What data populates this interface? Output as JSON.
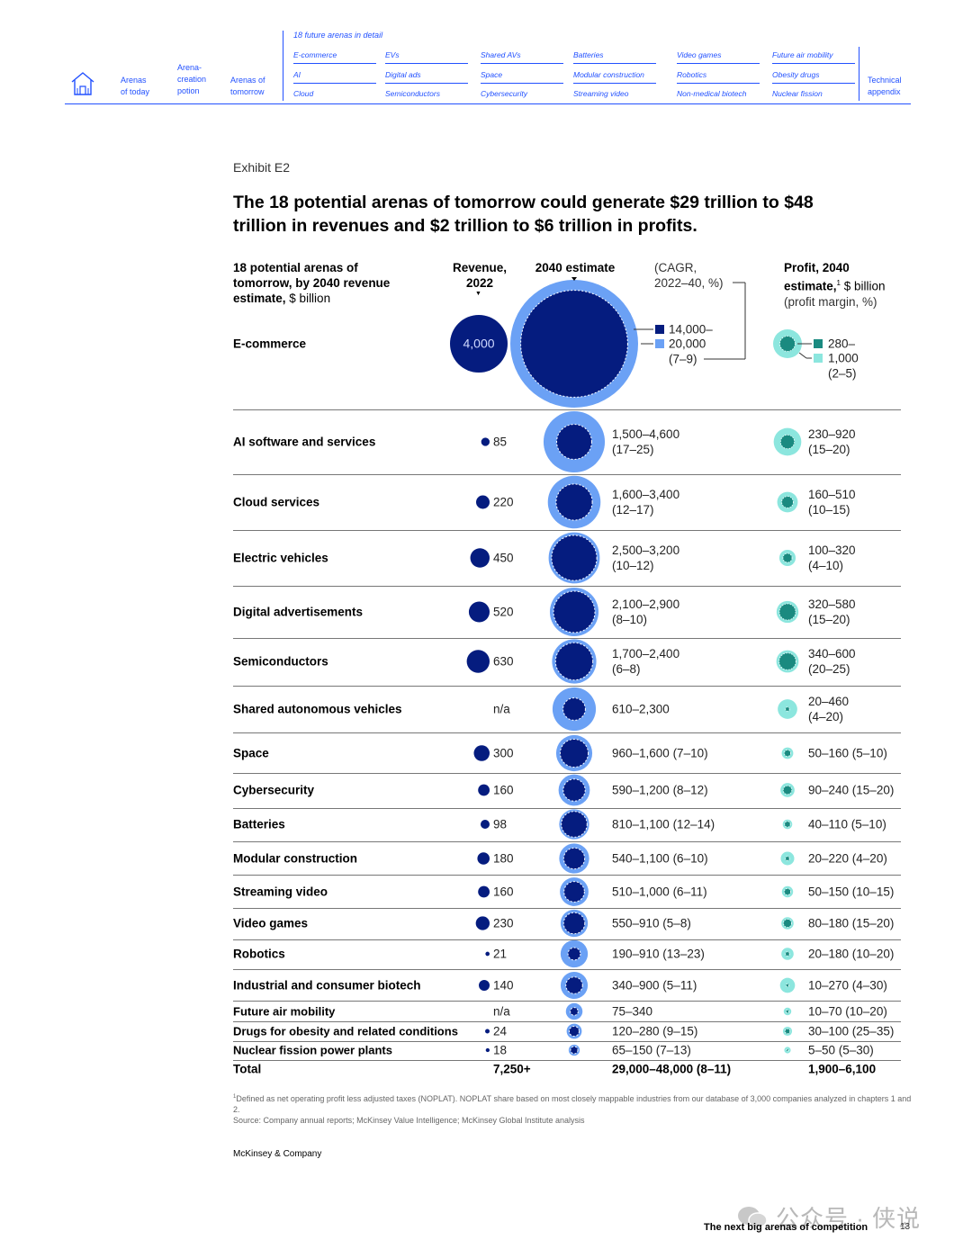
{
  "nav": {
    "sections": [
      {
        "label": "Arenas\nof today"
      },
      {
        "label": "Arena-\ncreation\npotion"
      },
      {
        "label": "Arenas of\ntomorrow"
      },
      {
        "label": "Technical\nappendix"
      }
    ],
    "detail_title": "18 future arenas in detail",
    "detail_columns": [
      [
        "E-commerce",
        "AI",
        "Cloud"
      ],
      [
        "EVs",
        "Digital ads",
        "Semiconductors"
      ],
      [
        "Shared AVs",
        "Space",
        "Cybersecurity"
      ],
      [
        "Batteries",
        "Modular construction",
        "Streaming video"
      ],
      [
        "Video games",
        "Robotics",
        "Non-medical biotech"
      ],
      [
        "Future air mobility",
        "Obesity drugs",
        "Nuclear fission"
      ]
    ]
  },
  "exhibit": {
    "label": "Exhibit E2",
    "title": "The 18 potential arenas of tomorrow could generate $29 trillion to $48 trillion in revenues and $2 trillion to $6 trillion in profits."
  },
  "headers": {
    "arenas_bold": "18 potential arenas of tomorrow, by 2040 revenue estimate,",
    "arenas_unit": "$ billion",
    "revenue_2022": "Revenue, 2022",
    "estimate_2040": "2040 estimate",
    "cagr_note": "(CAGR, 2022–40, %)",
    "profit_bold": "Profit, 2040 estimate,",
    "profit_sup": "1",
    "profit_unit": "$ billion",
    "profit_margin": "(profit margin, %)"
  },
  "legend": {
    "low_2040": "14,000–",
    "high_2040": "20,000",
    "cagr_2040": "(7–9)",
    "low_profit": "280–",
    "high_profit": "1,000",
    "margin_profit": "(2–5)"
  },
  "colors": {
    "revenue_2022": "#051c7f",
    "low_2040": "#051c7f",
    "high_2040": "#6ba1f5",
    "low_profit": "#1a8a80",
    "high_profit": "#8ce6de",
    "nav_blue": "#2251ff"
  },
  "chart_data": {
    "type": "bubble-table",
    "title": "The 18 potential arenas of tomorrow could generate $29 trillion to $48 trillion in revenues and $2 trillion to $6 trillion in profits.",
    "units": "$ billion",
    "rows": [
      {
        "name": "E-commerce",
        "rev2022": 4000,
        "rev2022_label": "4,000",
        "rev2040_low": 14000,
        "rev2040_high": 20000,
        "rev2040_label": "14,000–20,000 (7–9)",
        "profit_low": 280,
        "profit_high": 1000,
        "profit_label": "280–1,000 (2–5)"
      },
      {
        "name": "AI software and services",
        "rev2022": 85,
        "rev2022_label": "85",
        "rev2040_low": 1500,
        "rev2040_high": 4600,
        "rev2040_label": "1,500–4,600\n(17–25)",
        "profit_low": 230,
        "profit_high": 920,
        "profit_label": "230–920\n(15–20)"
      },
      {
        "name": "Cloud services",
        "rev2022": 220,
        "rev2022_label": "220",
        "rev2040_low": 1600,
        "rev2040_high": 3400,
        "rev2040_label": "1,600–3,400\n(12–17)",
        "profit_low": 160,
        "profit_high": 510,
        "profit_label": "160–510\n(10–15)"
      },
      {
        "name": "Electric vehicles",
        "rev2022": 450,
        "rev2022_label": "450",
        "rev2040_low": 2500,
        "rev2040_high": 3200,
        "rev2040_label": "2,500–3,200\n(10–12)",
        "profit_low": 100,
        "profit_high": 320,
        "profit_label": "100–320\n(4–10)"
      },
      {
        "name": "Digital advertisements",
        "rev2022": 520,
        "rev2022_label": "520",
        "rev2040_low": 2100,
        "rev2040_high": 2900,
        "rev2040_label": "2,100–2,900\n(8–10)",
        "profit_low": 320,
        "profit_high": 580,
        "profit_label": "320–580\n(15–20)"
      },
      {
        "name": "Semiconductors",
        "rev2022": 630,
        "rev2022_label": "630",
        "rev2040_low": 1700,
        "rev2040_high": 2400,
        "rev2040_label": "1,700–2,400\n(6–8)",
        "profit_low": 340,
        "profit_high": 600,
        "profit_label": "340–600\n(20–25)"
      },
      {
        "name": "Shared autonomous vehicles",
        "rev2022": null,
        "rev2022_label": "n/a",
        "rev2040_low": 610,
        "rev2040_high": 2300,
        "rev2040_label": "610–2,300",
        "profit_low": 20,
        "profit_high": 460,
        "profit_label": "20–460\n(4–20)"
      },
      {
        "name": "Space",
        "rev2022": 300,
        "rev2022_label": "300",
        "rev2040_low": 960,
        "rev2040_high": 1600,
        "rev2040_label": "960–1,600 (7–10)",
        "profit_low": 50,
        "profit_high": 160,
        "profit_label": "50–160 (5–10)"
      },
      {
        "name": "Cybersecurity",
        "rev2022": 160,
        "rev2022_label": "160",
        "rev2040_low": 590,
        "rev2040_high": 1200,
        "rev2040_label": "590–1,200 (8–12)",
        "profit_low": 90,
        "profit_high": 240,
        "profit_label": "90–240 (15–20)"
      },
      {
        "name": "Batteries",
        "rev2022": 98,
        "rev2022_label": "98",
        "rev2040_low": 810,
        "rev2040_high": 1100,
        "rev2040_label": "810–1,100 (12–14)",
        "profit_low": 40,
        "profit_high": 110,
        "profit_label": "40–110 (5–10)"
      },
      {
        "name": "Modular construction",
        "rev2022": 180,
        "rev2022_label": "180",
        "rev2040_low": 540,
        "rev2040_high": 1100,
        "rev2040_label": "540–1,100 (6–10)",
        "profit_low": 20,
        "profit_high": 220,
        "profit_label": "20–220 (4–20)"
      },
      {
        "name": "Streaming video",
        "rev2022": 160,
        "rev2022_label": "160",
        "rev2040_low": 510,
        "rev2040_high": 1000,
        "rev2040_label": "510–1,000 (6–11)",
        "profit_low": 50,
        "profit_high": 150,
        "profit_label": "50–150 (10–15)"
      },
      {
        "name": "Video games",
        "rev2022": 230,
        "rev2022_label": "230",
        "rev2040_low": 550,
        "rev2040_high": 910,
        "rev2040_label": "550–910 (5–8)",
        "profit_low": 80,
        "profit_high": 180,
        "profit_label": "80–180 (15–20)"
      },
      {
        "name": "Robotics",
        "rev2022": 21,
        "rev2022_label": "21",
        "rev2040_low": 190,
        "rev2040_high": 910,
        "rev2040_label": "190–910 (13–23)",
        "profit_low": 20,
        "profit_high": 180,
        "profit_label": "20–180 (10–20)"
      },
      {
        "name": "Industrial and consumer biotech",
        "rev2022": 140,
        "rev2022_label": "140",
        "rev2040_low": 340,
        "rev2040_high": 900,
        "rev2040_label": "340–900 (5–11)",
        "profit_low": 10,
        "profit_high": 270,
        "profit_label": "10–270 (4–30)"
      },
      {
        "name": "Future air mobility",
        "rev2022": null,
        "rev2022_label": "n/a",
        "rev2040_low": 75,
        "rev2040_high": 340,
        "rev2040_label": "75–340",
        "profit_low": 10,
        "profit_high": 70,
        "profit_label": "10–70 (10–20)"
      },
      {
        "name": "Drugs for obesity and related conditions",
        "rev2022": 24,
        "rev2022_label": "24",
        "rev2040_low": 120,
        "rev2040_high": 280,
        "rev2040_label": "120–280 (9–15)",
        "profit_low": 30,
        "profit_high": 100,
        "profit_label": "30–100 (25–35)"
      },
      {
        "name": "Nuclear fission power plants",
        "rev2022": 18,
        "rev2022_label": "18",
        "rev2040_low": 65,
        "rev2040_high": 150,
        "rev2040_label": "65–150 (7–13)",
        "profit_low": 5,
        "profit_high": 50,
        "profit_label": "5–50 (5–30)"
      }
    ],
    "total": {
      "name": "Total",
      "rev2022_label": "7,250+",
      "rev2040_label": "29,000–48,000 (8–11)",
      "profit_label": "1,900–6,100"
    }
  },
  "footer": {
    "note": "Defined as net operating profit less adjusted taxes (NOPLAT). NOPLAT share based on most closely mappable industries from our database of 3,000 companies analyzed in chapters 1 and 2.",
    "note_sup": "1",
    "source": "Source: Company annual reports; McKinsey Value Intelligence; McKinsey Global Institute analysis",
    "brand": "McKinsey & Company",
    "page_title": "The next big arenas of competition",
    "page_number": "13",
    "watermark": "公众号 · 侠说"
  }
}
